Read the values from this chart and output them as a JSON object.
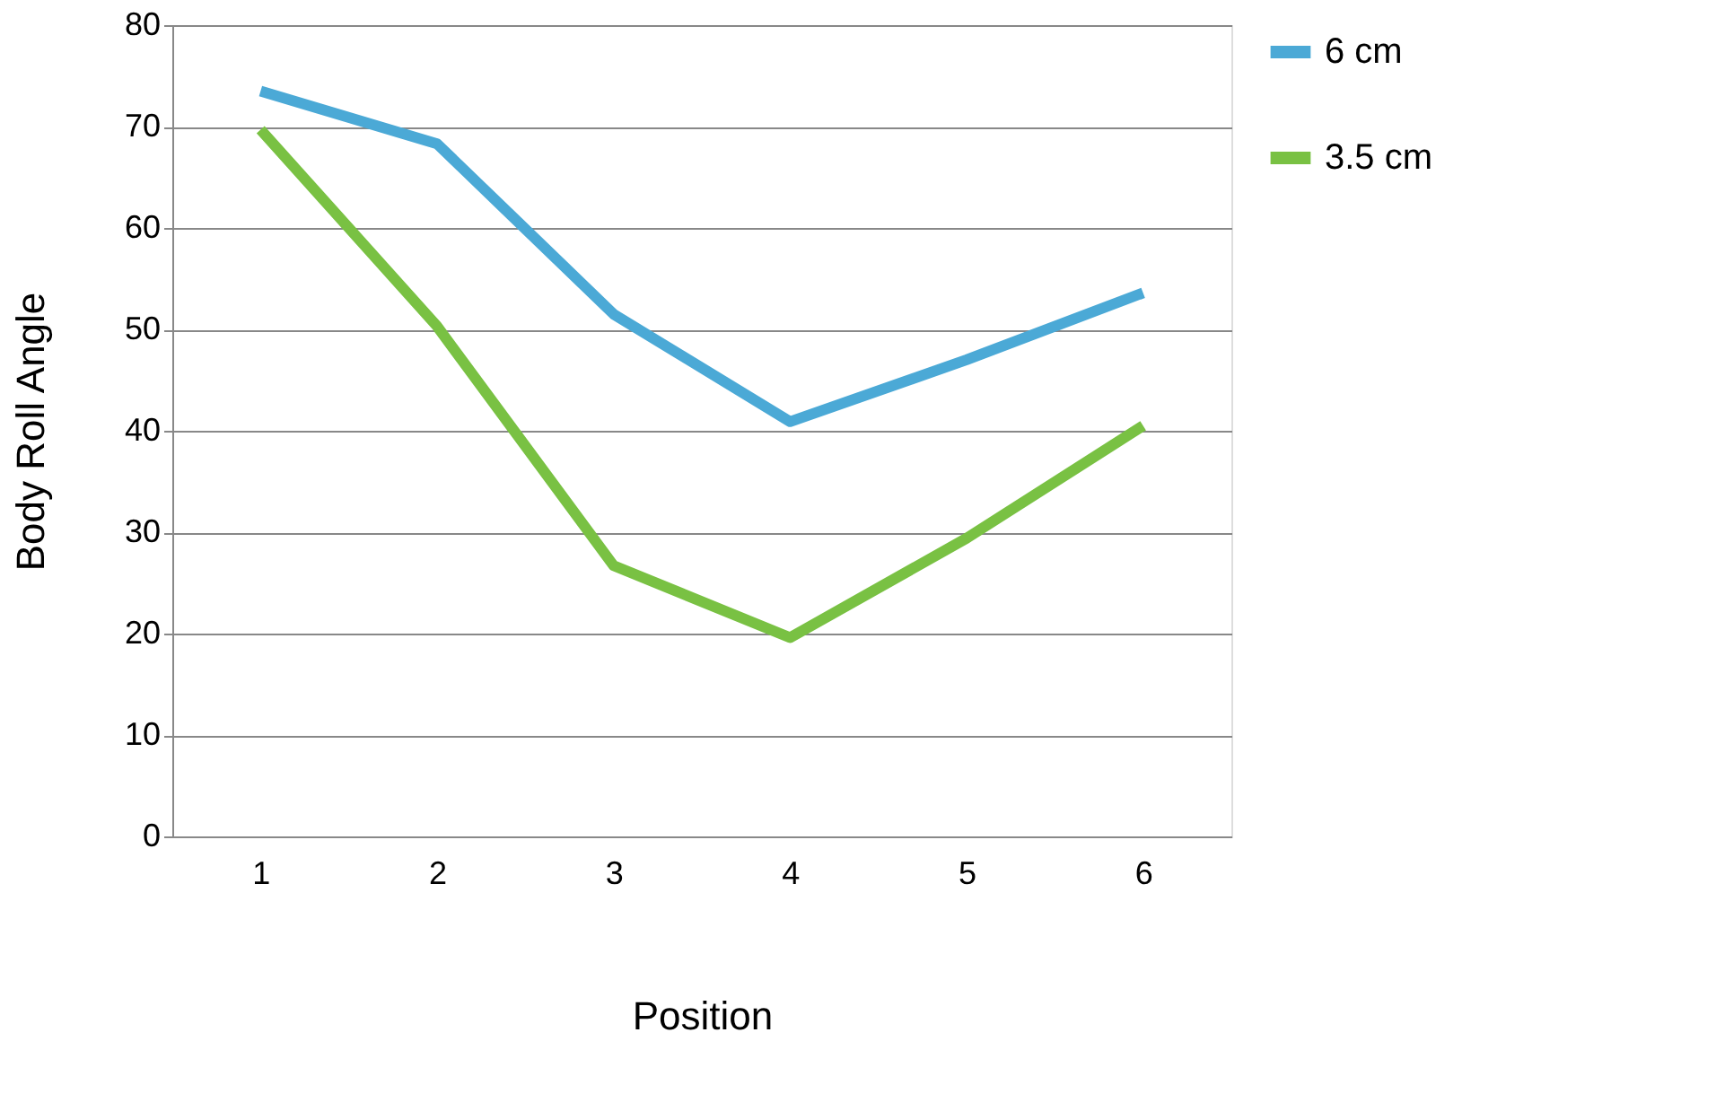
{
  "chart_data": {
    "type": "line",
    "xlabel": "Position",
    "ylabel": "Body Roll Angle",
    "categories": [
      "1",
      "2",
      "3",
      "4",
      "5",
      "6"
    ],
    "series": [
      {
        "name": "6 cm",
        "color": "#4ba9d6",
        "values": [
          73.5,
          68.3,
          51.5,
          40.9,
          47,
          53.6
        ]
      },
      {
        "name": "3.5 cm",
        "color": "#79c143",
        "values": [
          69.7,
          50.3,
          26.7,
          19.6,
          29.4,
          40.5
        ]
      }
    ],
    "ylim": [
      0,
      80
    ],
    "yticks": [
      0,
      10,
      20,
      30,
      40,
      50,
      60,
      70,
      80
    ],
    "grid": "y",
    "legend": "right",
    "marker": "none",
    "line_style": "solid"
  }
}
